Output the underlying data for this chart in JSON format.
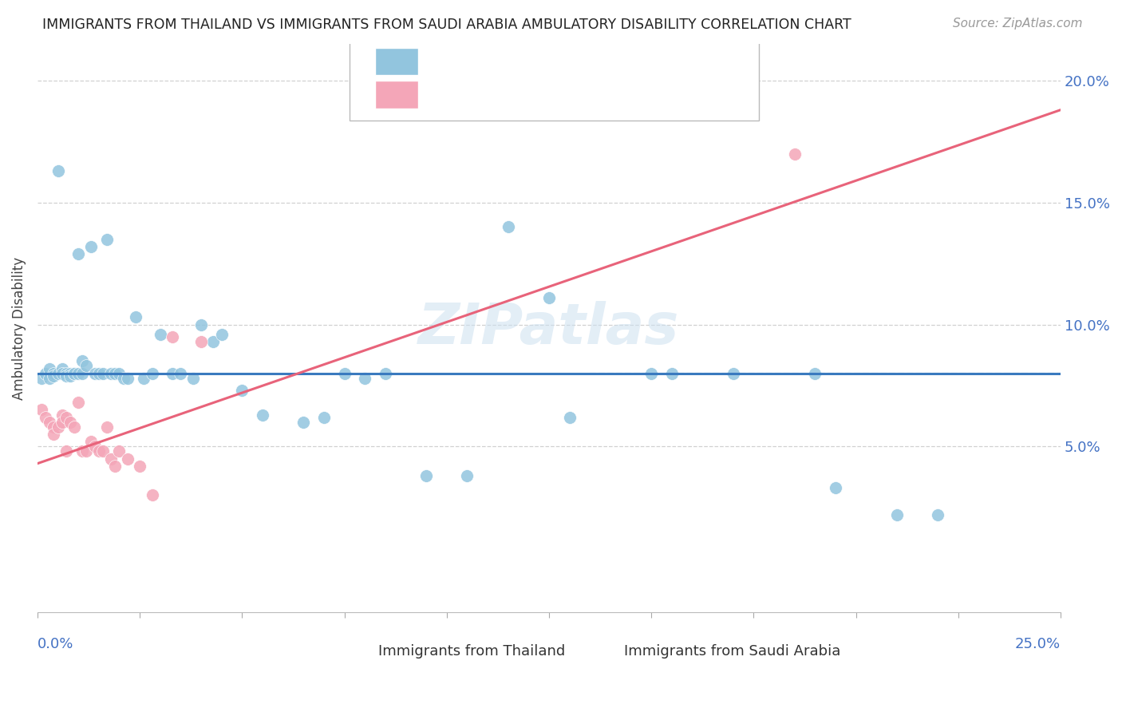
{
  "title": "IMMIGRANTS FROM THAILAND VS IMMIGRANTS FROM SAUDI ARABIA AMBULATORY DISABILITY CORRELATION CHART",
  "source": "Source: ZipAtlas.com",
  "ylabel": "Ambulatory Disability",
  "xrange": [
    0.0,
    0.25
  ],
  "yrange": [
    -0.018,
    0.215
  ],
  "color_blue": "#92c5de",
  "color_pink": "#f4a6b8",
  "color_line_blue": "#3a7abf",
  "color_line_pink": "#e8637a",
  "watermark": "ZIPatlas",
  "legend_label1": "Immigrants from Thailand",
  "legend_label2": "Immigrants from Saudi Arabia",
  "blue_hline_y": 0.08,
  "pink_slope": 0.58,
  "pink_intercept": 0.043,
  "blue_points_x": [
    0.001,
    0.002,
    0.003,
    0.003,
    0.004,
    0.004,
    0.005,
    0.005,
    0.006,
    0.006,
    0.007,
    0.007,
    0.008,
    0.008,
    0.009,
    0.009,
    0.01,
    0.01,
    0.011,
    0.011,
    0.012,
    0.013,
    0.014,
    0.015,
    0.016,
    0.017,
    0.018,
    0.019,
    0.02,
    0.021,
    0.022,
    0.024,
    0.026,
    0.028,
    0.03,
    0.033,
    0.035,
    0.038,
    0.04,
    0.043,
    0.045,
    0.05,
    0.055,
    0.065,
    0.07,
    0.075,
    0.08,
    0.085,
    0.095,
    0.105,
    0.115,
    0.125,
    0.13,
    0.15,
    0.155,
    0.17,
    0.19,
    0.195,
    0.21,
    0.22
  ],
  "blue_points_y": [
    0.078,
    0.08,
    0.078,
    0.082,
    0.08,
    0.079,
    0.163,
    0.08,
    0.082,
    0.08,
    0.08,
    0.079,
    0.08,
    0.079,
    0.08,
    0.08,
    0.129,
    0.08,
    0.085,
    0.08,
    0.083,
    0.132,
    0.08,
    0.08,
    0.08,
    0.135,
    0.08,
    0.08,
    0.08,
    0.078,
    0.078,
    0.103,
    0.078,
    0.08,
    0.096,
    0.08,
    0.08,
    0.078,
    0.1,
    0.093,
    0.096,
    0.073,
    0.063,
    0.06,
    0.062,
    0.08,
    0.078,
    0.08,
    0.038,
    0.038,
    0.14,
    0.111,
    0.062,
    0.08,
    0.08,
    0.08,
    0.08,
    0.033,
    0.022,
    0.022
  ],
  "pink_points_x": [
    0.001,
    0.002,
    0.003,
    0.004,
    0.004,
    0.005,
    0.006,
    0.006,
    0.007,
    0.007,
    0.008,
    0.009,
    0.01,
    0.011,
    0.012,
    0.013,
    0.014,
    0.015,
    0.016,
    0.017,
    0.018,
    0.019,
    0.02,
    0.022,
    0.025,
    0.028,
    0.033,
    0.04,
    0.185
  ],
  "pink_points_y": [
    0.065,
    0.062,
    0.06,
    0.058,
    0.055,
    0.058,
    0.063,
    0.06,
    0.048,
    0.062,
    0.06,
    0.058,
    0.068,
    0.048,
    0.048,
    0.052,
    0.05,
    0.048,
    0.048,
    0.058,
    0.045,
    0.042,
    0.048,
    0.045,
    0.042,
    0.03,
    0.095,
    0.093,
    0.17
  ]
}
